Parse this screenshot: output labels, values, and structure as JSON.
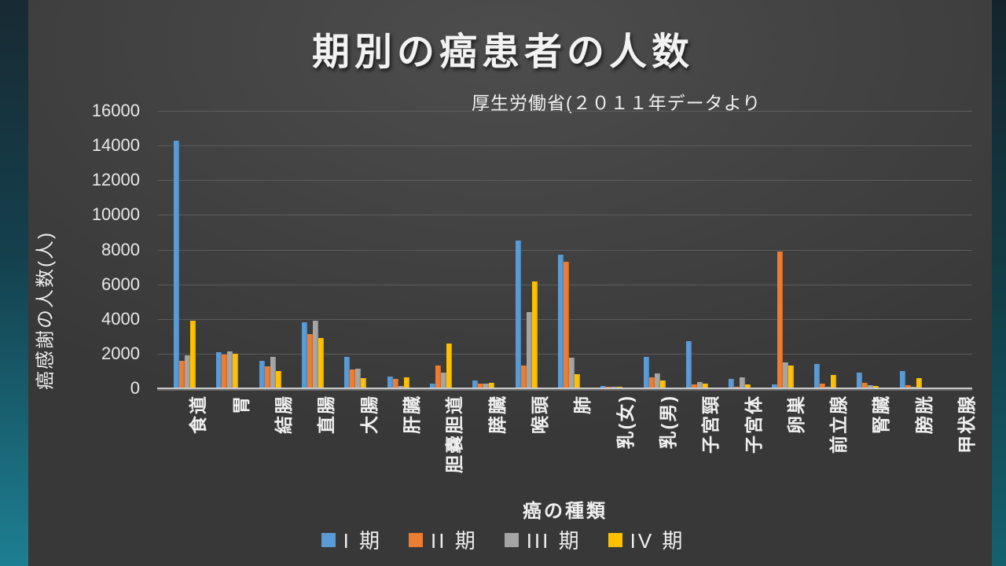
{
  "slide": {
    "title": "期別の癌患者の人数",
    "subtitle": "厚生労働省(２０１１年データより"
  },
  "chart_data": {
    "type": "bar",
    "title": "期別の癌患者の人数",
    "annotation": "厚生労働省(２０１１年データより",
    "xlabel": "癌の種類",
    "ylabel": "癌感謝の人数(人)",
    "ylim": [
      0,
      16000
    ],
    "ytick_step": 2000,
    "y_ticks": [
      0,
      2000,
      4000,
      6000,
      8000,
      10000,
      12000,
      14000,
      16000
    ],
    "grid": true,
    "legend_position": "bottom",
    "categories": [
      "食道",
      "胃",
      "結腸",
      "直腸",
      "大腸",
      "肝臓",
      "胆嚢胆道",
      "膵臓",
      "喉頭",
      "肺",
      "乳(女)",
      "乳(男)",
      "子宮頸",
      "子宮体",
      "卵巣",
      "前立腺",
      "腎臓",
      "膀胱",
      "甲状腺"
    ],
    "series": [
      {
        "name": "I 期",
        "color": "#5B9BD5",
        "values": [
          14300,
          2100,
          1600,
          3800,
          1800,
          700,
          250,
          450,
          8500,
          7700,
          150,
          1800,
          2700,
          550,
          230,
          1400,
          900,
          1000,
          0
        ]
      },
      {
        "name": "II 期",
        "color": "#ED7D31",
        "values": [
          1600,
          1950,
          1250,
          3150,
          1100,
          550,
          1300,
          250,
          1300,
          7300,
          80,
          650,
          220,
          100,
          7900,
          250,
          300,
          180,
          0
        ]
      },
      {
        "name": "III 期",
        "color": "#A5A5A5",
        "values": [
          1900,
          2150,
          1800,
          3900,
          1150,
          150,
          900,
          250,
          4400,
          1750,
          80,
          850,
          350,
          650,
          1500,
          100,
          200,
          80,
          0
        ]
      },
      {
        "name": "IV 期",
        "color": "#FFC000",
        "values": [
          3900,
          2000,
          1000,
          2900,
          600,
          650,
          2600,
          330,
          6150,
          800,
          100,
          450,
          270,
          230,
          1300,
          750,
          150,
          600,
          0
        ]
      }
    ]
  },
  "colors": {
    "slide_bg": "#3F3F3F",
    "edge_teal": "#1D7F92",
    "grid": "#5C5C5C",
    "axis_line": "#C9C9C9",
    "text": "#F0F0F0"
  }
}
